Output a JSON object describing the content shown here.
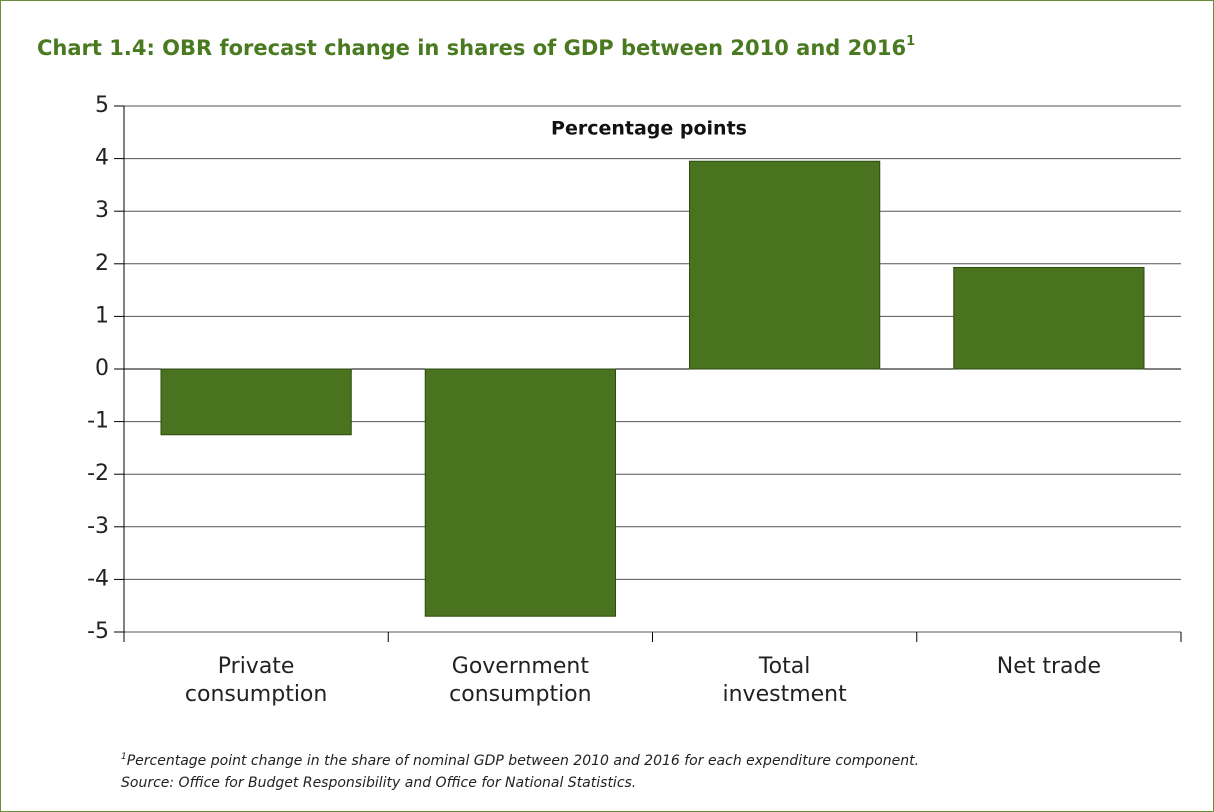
{
  "chart_data": {
    "type": "bar",
    "title": "Chart 1.4: OBR forecast change in shares of GDP between 2010 and 2016",
    "title_superscript": "1",
    "annotation": "Percentage points",
    "categories": [
      "Private consumption",
      "Government consumption",
      "Total investment",
      "Net trade"
    ],
    "values": [
      -1.25,
      -4.7,
      3.95,
      1.93
    ],
    "color": "#4a731f",
    "ylim": [
      -5,
      5
    ],
    "yticks": [
      -5,
      -4,
      -3,
      -2,
      -1,
      0,
      1,
      2,
      3,
      4,
      5
    ],
    "grid": true,
    "footnote": {
      "marker": "1",
      "text": "Percentage point change in the share of nominal GDP between 2010 and 2016 for each expenditure component.",
      "source": "Source: Office for Budget Responsibility and Office for National Statistics."
    }
  }
}
